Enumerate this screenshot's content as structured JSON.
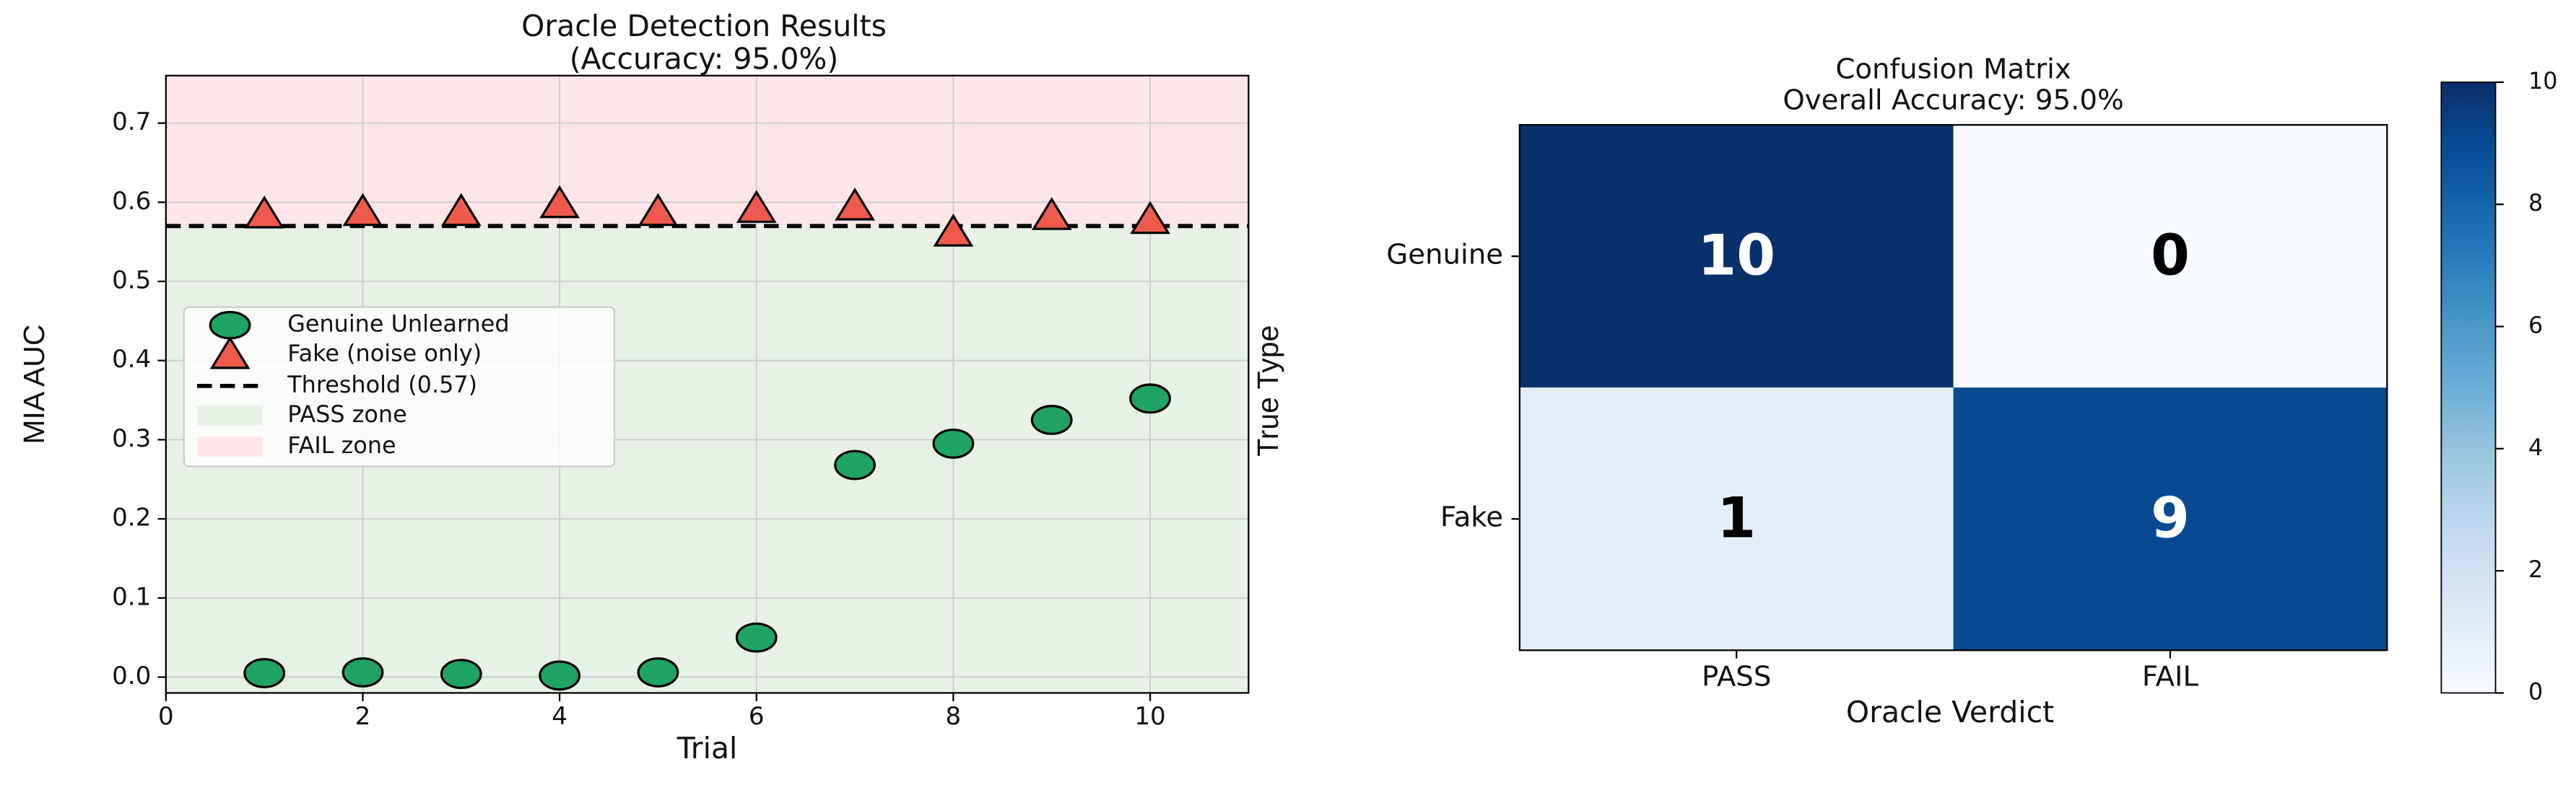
{
  "chart_data": [
    {
      "type": "scatter",
      "title": "Oracle Detection Results",
      "subtitle": "(Accuracy: 95.0%)",
      "x_label": "Trial",
      "y_label": "MIA AUC",
      "x": [
        1,
        2,
        3,
        4,
        5,
        6,
        7,
        8,
        9,
        10
      ],
      "series": [
        {
          "name": "Genuine Unlearned",
          "color": "#1fa463",
          "marker": "circle",
          "values": [
            0.005,
            0.006,
            0.004,
            0.002,
            0.006,
            0.05,
            0.268,
            0.295,
            0.325,
            0.352
          ]
        },
        {
          "name": "Fake (noise only)",
          "color": "#ef5a4c",
          "marker": "triangle",
          "values": [
            0.585,
            0.588,
            0.588,
            0.598,
            0.588,
            0.592,
            0.595,
            0.562,
            0.583,
            0.578
          ]
        }
      ],
      "threshold": {
        "name": "Threshold (0.57)",
        "value": 0.57,
        "color": "#000000"
      },
      "zones": [
        {
          "name": "PASS zone",
          "color": "#e7f1e6"
        },
        {
          "name": "FAIL zone",
          "color": "#fde5e8"
        }
      ],
      "xlim": [
        0,
        11
      ],
      "xticks": [
        0,
        2,
        4,
        6,
        8,
        10
      ],
      "ylim": [
        -0.02,
        0.76
      ],
      "yticks": [
        {
          "value": 0,
          "label": "0.0"
        },
        0.1,
        0.2,
        0.3,
        0.4,
        0.5,
        0.6,
        0.7
      ],
      "grid": true,
      "legend": "center left"
    },
    {
      "type": "heatmap",
      "title": "Confusion Matrix",
      "subtitle": "Overall Accuracy: 95.0%",
      "x_label": "Oracle Verdict",
      "y_label": "True Type",
      "x_categories": [
        "PASS",
        "FAIL"
      ],
      "y_categories": [
        "Genuine",
        "Fake"
      ],
      "values": [
        [
          10,
          0
        ],
        [
          1,
          9
        ]
      ],
      "colormap": "Blues",
      "clim": [
        0,
        10
      ],
      "cticks": [
        0,
        2,
        4,
        6,
        8,
        10
      ]
    }
  ]
}
